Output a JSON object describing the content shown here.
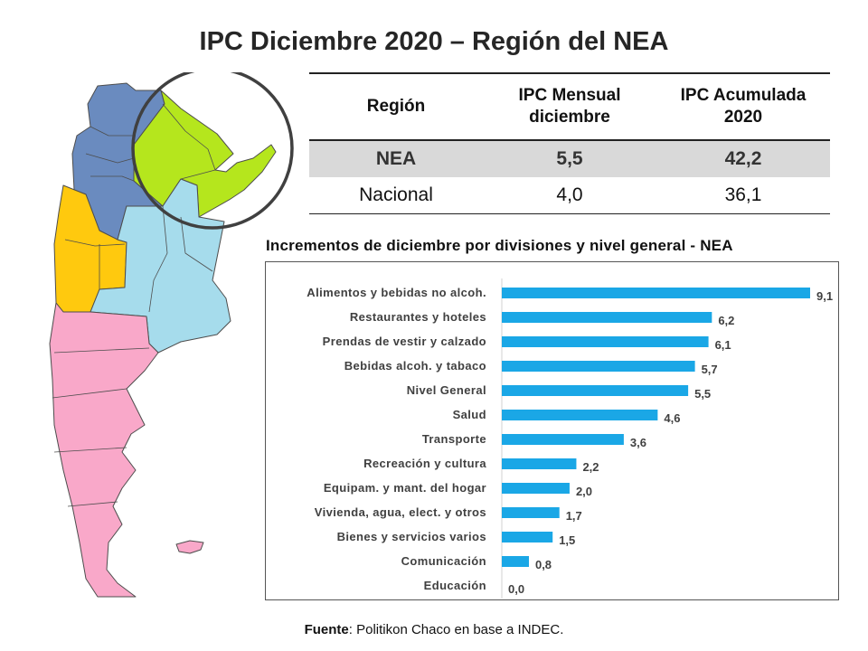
{
  "title": "IPC Diciembre 2020 – Región del NEA",
  "table": {
    "headers": {
      "region": "Región",
      "monthly_line1": "IPC Mensual",
      "monthly_line2": "diciembre",
      "annual_line1": "IPC Acumulada",
      "annual_line2": "2020"
    },
    "rows": [
      {
        "region": "NEA",
        "monthly": "5,5",
        "annual": "42,2"
      },
      {
        "region": "Nacional",
        "monthly": "4,0",
        "annual": "36,1"
      }
    ]
  },
  "chart_title": "Incrementos  de diciembre por divisiones y nivel general - NEA",
  "chart_data": {
    "type": "bar",
    "orientation": "horizontal",
    "categories": [
      "Alimentos y bebidas no alcoh.",
      "Restaurantes y hoteles",
      "Prendas de vestir y calzado",
      "Bebidas alcoh. y tabaco",
      "Nivel General",
      "Salud",
      "Transporte",
      "Recreación y cultura",
      "Equipam. y mant. del hogar",
      "Vivienda, agua, elect. y otros",
      "Bienes y servicios varios",
      "Comunicación",
      "Educación"
    ],
    "values": [
      9.1,
      6.2,
      6.1,
      5.7,
      5.5,
      4.6,
      3.6,
      2.2,
      2.0,
      1.7,
      1.5,
      0.8,
      0.0
    ],
    "value_labels": [
      "9,1",
      "6,2",
      "6,1",
      "5,7",
      "5,5",
      "4,6",
      "3,6",
      "2,2",
      "2,0",
      "1,7",
      "1,5",
      "0,8",
      "0,0"
    ],
    "xlim": [
      0,
      9.1
    ],
    "bar_color": "#1aa7e6",
    "grid": false,
    "legend": "none"
  },
  "source_label": "Fuente",
  "source_text": ": Politikon Chaco en base a INDEC.",
  "colors": {
    "nea": "#b5e61d",
    "noa": "#6a8bbf",
    "cuyo": "#ffc90e",
    "pampeana": "#a6dcec",
    "patagonia": "#f9a8c9",
    "highlight_row": "#d9d9d9"
  }
}
